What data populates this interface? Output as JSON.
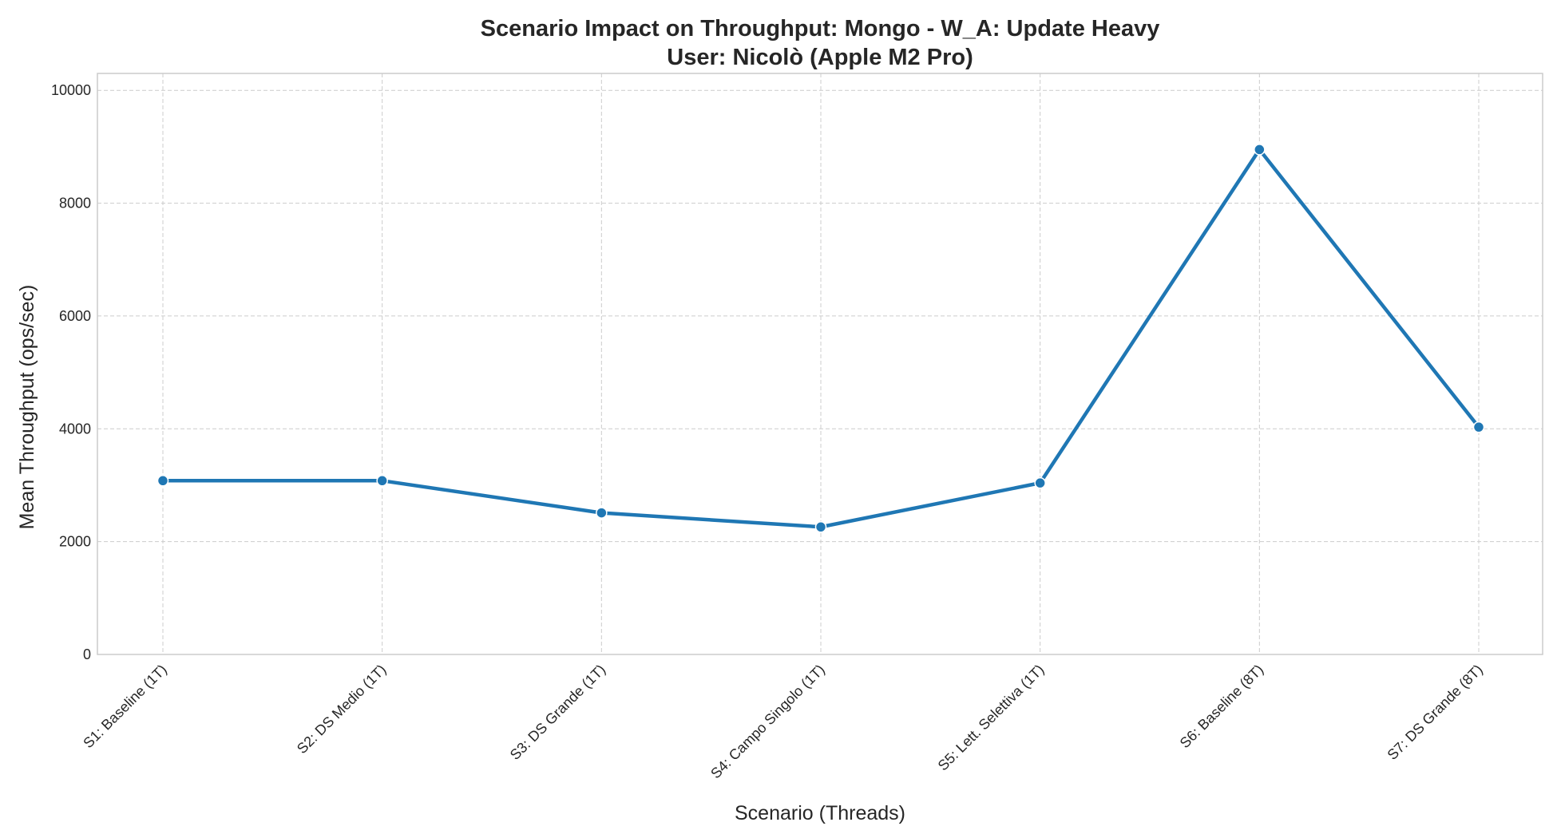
{
  "chart_data": {
    "type": "line",
    "title": "Scenario Impact on Throughput: Mongo - W_A: Update Heavy",
    "subtitle": "User: Nicolò (Apple M2 Pro)",
    "xlabel": "Scenario (Threads)",
    "ylabel": "Mean Throughput (ops/sec)",
    "categories": [
      "S1: Baseline (1T)",
      "S2: DS Medio (1T)",
      "S3: DS Grande (1T)",
      "S4: Campo Singolo (1T)",
      "S5: Lett. Selettiva (1T)",
      "S6: Baseline (8T)",
      "S7: DS Grande (8T)"
    ],
    "series": [
      {
        "values": [
          3080,
          3080,
          2510,
          2260,
          3040,
          8950,
          4030
        ],
        "color": "#1f77b4"
      }
    ],
    "ylim": [
      0,
      10300
    ],
    "yticks": [
      0,
      2000,
      4000,
      6000,
      8000,
      10000
    ],
    "grid": true,
    "marker": "circle"
  }
}
